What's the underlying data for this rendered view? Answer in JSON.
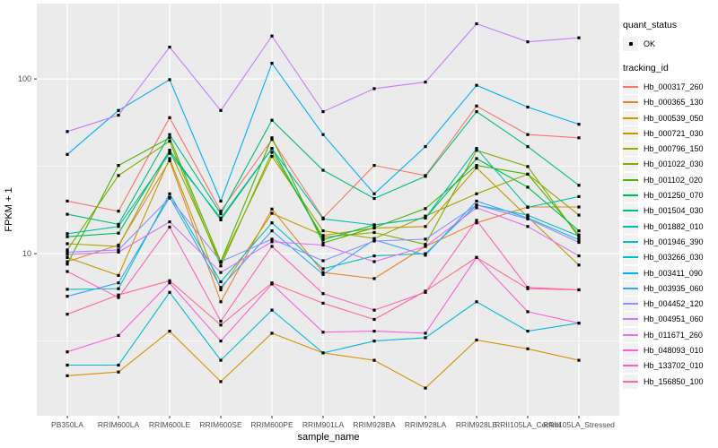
{
  "chart_data": {
    "type": "line",
    "xlabel": "sample_name",
    "ylabel": "FPKM + 1",
    "y_scale": "log10",
    "ylim": [
      1.18,
      270
    ],
    "yticks": [
      {
        "value": 10,
        "label": "10"
      },
      {
        "value": 100,
        "label": "100"
      }
    ],
    "y_minor": [
      3.162,
      31.62
    ],
    "grid": "on",
    "legend_position": "right",
    "panel_bg": "#EBEBEB",
    "grid_color": "#FFFFFF",
    "marker_color": "#000000",
    "axis_text_color": "#4D4D4D",
    "categories": [
      "PB350LA",
      "RRIM600LA",
      "RRIM600LE",
      "RRIM600SE",
      "RRIM600PE",
      "RRIM901LA",
      "RRIM928BA",
      "RRIM928LA",
      "RRIM928LE",
      "RRII105LA_Control",
      "RRII105LA_Stressed"
    ],
    "legend": {
      "quant_status_title": "quant_status",
      "quant_status_items": [
        {
          "label": "OK",
          "marker": "point"
        }
      ],
      "tracking_id_title": "tracking_id"
    },
    "series": [
      {
        "tracking_id": "Hb_000317_260",
        "quant_status": "OK",
        "color": "#F8766D",
        "values": [
          20,
          17.5,
          60,
          17.5,
          45,
          16,
          32,
          28,
          70,
          48,
          46
        ]
      },
      {
        "tracking_id": "Hb_000365_130",
        "quant_status": "OK",
        "color": "#E9842E",
        "values": [
          9.0,
          11.2,
          34,
          5.3,
          18,
          7.8,
          7.2,
          11,
          15,
          18.5,
          18.5
        ]
      },
      {
        "tracking_id": "Hb_000539_050",
        "quant_status": "OK",
        "color": "#D69100",
        "values": [
          2.0,
          2.1,
          3.6,
          1.85,
          3.5,
          2.7,
          2.45,
          1.7,
          3.2,
          2.85,
          2.45
        ]
      },
      {
        "tracking_id": "Hb_000721_030",
        "quant_status": "OK",
        "color": "#C19B00",
        "values": [
          9.5,
          7.5,
          35,
          6.2,
          17,
          12.7,
          14,
          14.3,
          31,
          16.2,
          8.6
        ]
      },
      {
        "tracking_id": "Hb_000796_150",
        "quant_status": "OK",
        "color": "#A2A600",
        "values": [
          11.4,
          11.0,
          39,
          8.9,
          36,
          13.5,
          12.2,
          16.4,
          22,
          28.5,
          16.6
        ]
      },
      {
        "tracking_id": "Hb_001022_030",
        "quant_status": "OK",
        "color": "#7CAE00",
        "values": [
          10.5,
          28,
          44,
          8.5,
          38,
          12.4,
          13.2,
          11.3,
          39,
          31.5,
          12.4
        ]
      },
      {
        "tracking_id": "Hb_001102_020",
        "quant_status": "OK",
        "color": "#46B504",
        "values": [
          8.7,
          32,
          46,
          9.0,
          46,
          11.5,
          14.1,
          18.1,
          32,
          28.5,
          12.8
        ]
      },
      {
        "tracking_id": "Hb_001250_070",
        "quant_status": "OK",
        "color": "#00BC51",
        "values": [
          12.5,
          13.1,
          39,
          15.6,
          40,
          12.0,
          14.6,
          16.0,
          35,
          24,
          13.5
        ]
      },
      {
        "tracking_id": "Hb_001504_030",
        "quant_status": "OK",
        "color": "#00BF7B",
        "values": [
          16.8,
          14.7,
          48,
          16.9,
          58,
          30,
          20.7,
          27.7,
          65,
          41,
          24.6
        ]
      },
      {
        "tracking_id": "Hb_001882_010",
        "quant_status": "OK",
        "color": "#00C0A9",
        "values": [
          13,
          14.3,
          37.5,
          16,
          40,
          15.8,
          14.6,
          16,
          40,
          18.4,
          21.2
        ]
      },
      {
        "tracking_id": "Hb_001946_390",
        "quant_status": "OK",
        "color": "#00BFC4",
        "values": [
          6.25,
          6.3,
          22,
          6.9,
          15,
          8.2,
          9.7,
          10,
          19,
          16.6,
          12.6
        ]
      },
      {
        "tracking_id": "Hb_003266_030",
        "quant_status": "OK",
        "color": "#00BADC",
        "values": [
          2.3,
          2.3,
          6.0,
          2.45,
          4.75,
          2.7,
          3.16,
          3.3,
          5.3,
          3.6,
          4.0
        ]
      },
      {
        "tracking_id": "Hb_003411_090",
        "quant_status": "OK",
        "color": "#00AFF8",
        "values": [
          37,
          66,
          99,
          20,
          123,
          48,
          22,
          41,
          92,
          69,
          55
        ]
      },
      {
        "tracking_id": "Hb_003935_060",
        "quant_status": "OK",
        "color": "#3AA2FF",
        "values": [
          5.7,
          6.8,
          21,
          6.4,
          13.5,
          7.6,
          12,
          9.8,
          20,
          16,
          12
        ]
      },
      {
        "tracking_id": "Hb_004452_120",
        "quant_status": "OK",
        "color": "#8B93FF",
        "values": [
          10.2,
          10.5,
          20.8,
          9.0,
          12.1,
          9.1,
          11.8,
          12.1,
          19,
          15.8,
          11.6
        ]
      },
      {
        "tracking_id": "Hb_004951_060",
        "quant_status": "OK",
        "color": "#C77CFF",
        "values": [
          50,
          62,
          152,
          66,
          176,
          65,
          88,
          96,
          207,
          163,
          172
        ]
      },
      {
        "tracking_id": "Hb_011671_260",
        "quant_status": "OK",
        "color": "#E170F2",
        "values": [
          9.9,
          10.2,
          15.2,
          7.8,
          11.7,
          11.2,
          9.0,
          11.0,
          18.3,
          14.3,
          9.7
        ]
      },
      {
        "tracking_id": "Hb_048093_010",
        "quant_status": "OK",
        "color": "#F962DA",
        "values": [
          2.74,
          3.4,
          6.8,
          3.16,
          6.7,
          3.55,
          3.6,
          3.5,
          9.5,
          4.65,
          4.0
        ]
      },
      {
        "tracking_id": "Hb_133702_010",
        "quant_status": "OK",
        "color": "#FF62BB",
        "values": [
          7.9,
          5.6,
          14.2,
          4.1,
          11.0,
          5.9,
          4.75,
          6.0,
          15.5,
          6.4,
          6.2
        ]
      },
      {
        "tracking_id": "Hb_156850_100",
        "quant_status": "OK",
        "color": "#FF6B94",
        "values": [
          4.5,
          5.8,
          7.0,
          3.9,
          6.8,
          5.2,
          4.2,
          6.1,
          9.5,
          6.3,
          6.2
        ]
      }
    ]
  }
}
